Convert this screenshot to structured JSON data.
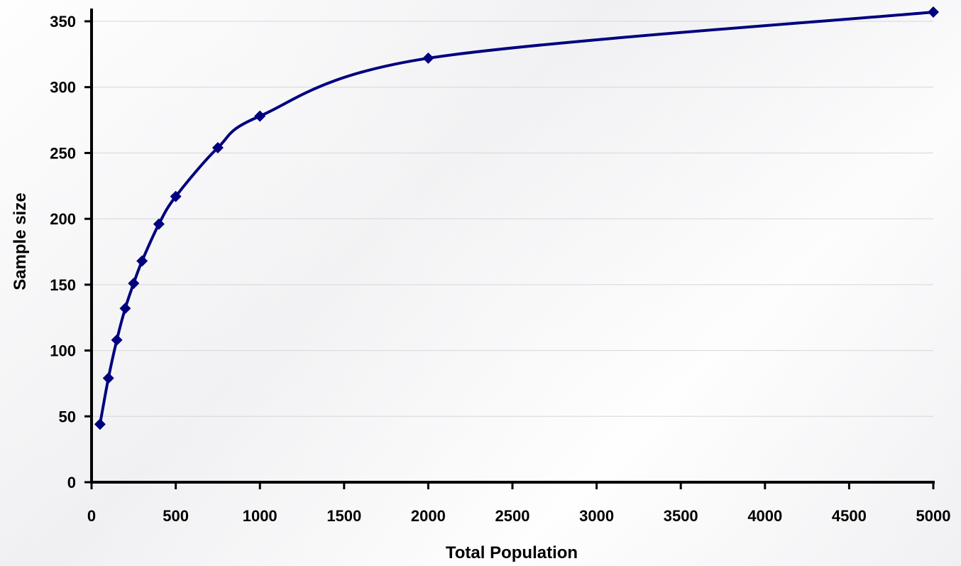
{
  "chart_data": {
    "type": "line",
    "title": "",
    "xlabel": "Total Population",
    "ylabel": "Sample size",
    "xlim": [
      0,
      5000
    ],
    "ylim": [
      0,
      350
    ],
    "xticks": [
      0,
      500,
      1000,
      1500,
      2000,
      2500,
      3000,
      3500,
      4000,
      4500,
      5000
    ],
    "yticks": [
      0,
      50,
      100,
      150,
      200,
      250,
      300,
      350
    ],
    "xtick_labels": [
      "0",
      "500",
      "1000",
      "1500",
      "2000",
      "2500",
      "3000",
      "3500",
      "4000",
      "4500",
      "5000"
    ],
    "ytick_labels": [
      "0",
      "50",
      "100",
      "150",
      "200",
      "250",
      "300",
      "350"
    ],
    "grid": true,
    "legend": "none",
    "marker": "diamond",
    "color": "#00007f",
    "series": [
      {
        "x": [
          50,
          100,
          150,
          200,
          250,
          300,
          400,
          500,
          750,
          1000,
          2000,
          5000
        ],
        "y": [
          44,
          79,
          108,
          132,
          151,
          168,
          196,
          217,
          254,
          278,
          322,
          357
        ]
      }
    ]
  }
}
